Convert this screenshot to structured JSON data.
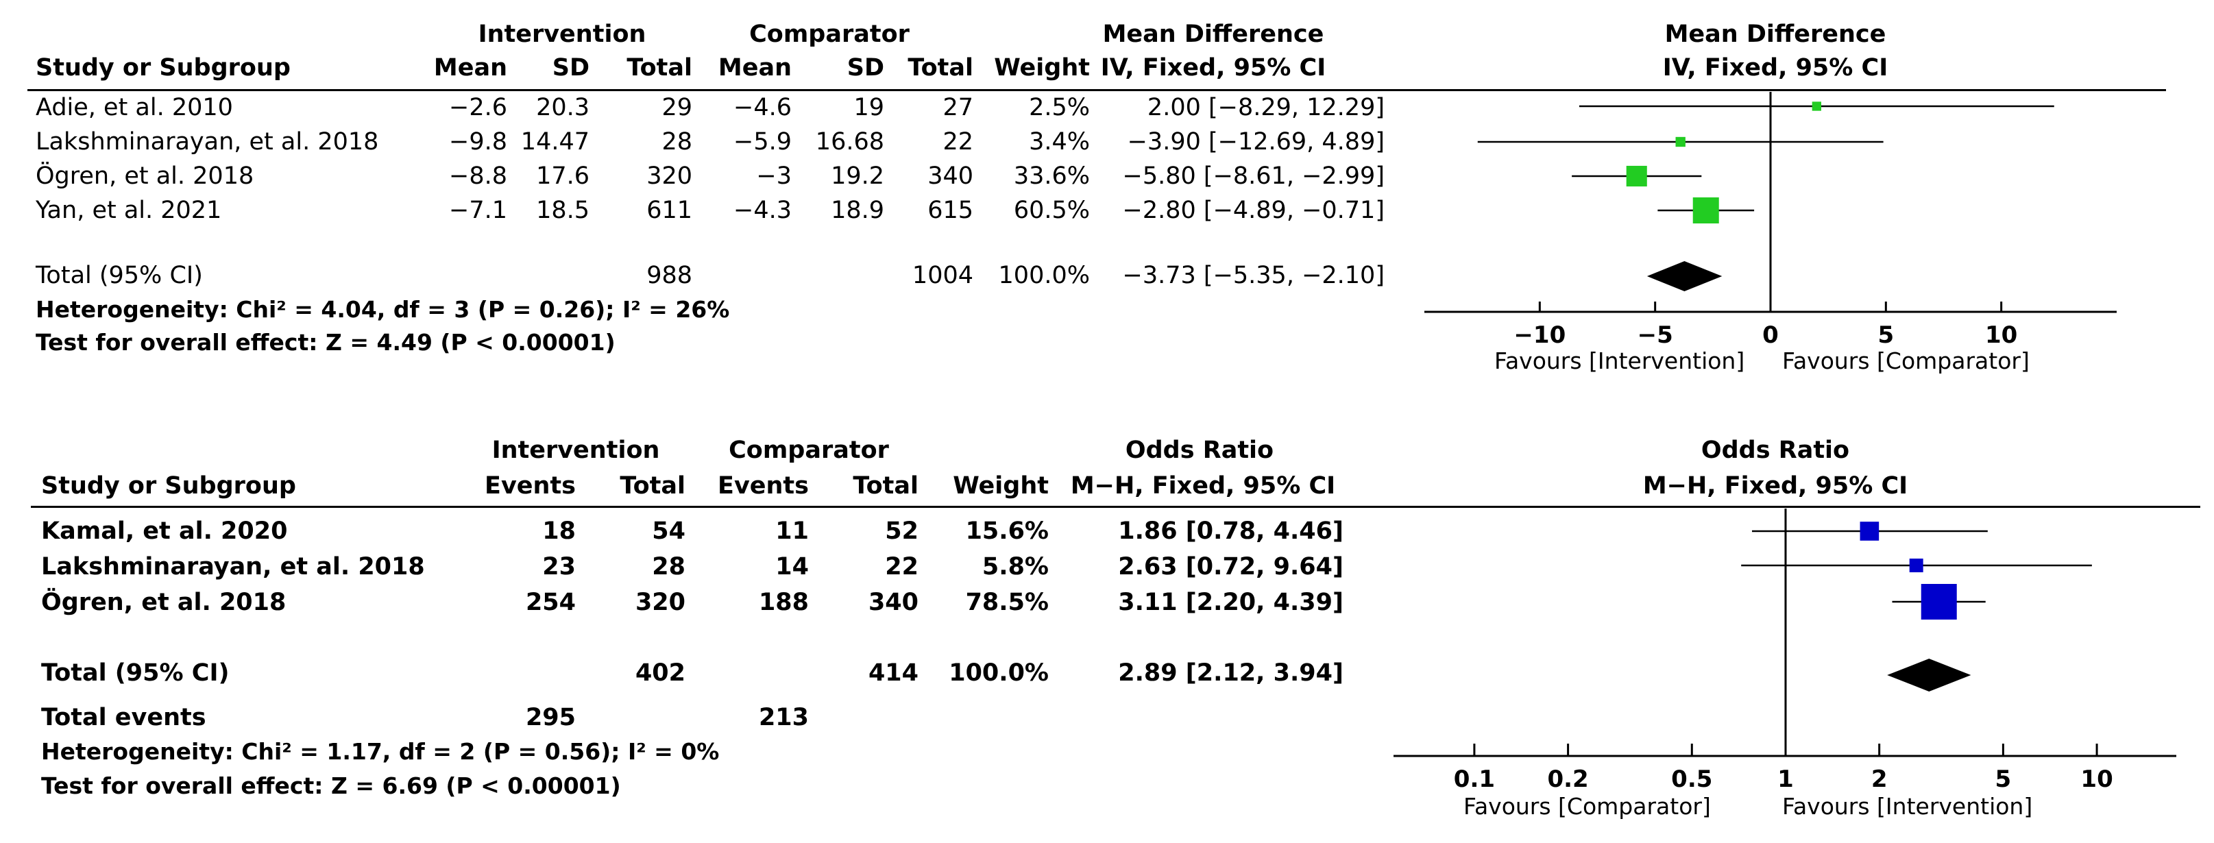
{
  "md": {
    "group_intervention": "Intervention",
    "group_comparator": "Comparator",
    "effect_title": "Mean Difference",
    "col_study": "Study or Subgroup",
    "col_mean": "Mean",
    "col_sd": "SD",
    "col_total": "Total",
    "col_weight": "Weight",
    "col_method": "IV, Fixed, 95% CI",
    "rows": [
      {
        "study": "Adie, et al. 2010",
        "i_mean": "−2.6",
        "i_sd": "20.3",
        "i_total": "29",
        "c_mean": "−4.6",
        "c_sd": "19",
        "c_total": "27",
        "weight": "2.5%",
        "ci": "2.00 [−8.29, 12.29]"
      },
      {
        "study": "Lakshminarayan, et al. 2018",
        "i_mean": "−9.8",
        "i_sd": "14.47",
        "i_total": "28",
        "c_mean": "−5.9",
        "c_sd": "16.68",
        "c_total": "22",
        "weight": "3.4%",
        "ci": "−3.90 [−12.69, 4.89]"
      },
      {
        "study": "Ögren, et al. 2018",
        "i_mean": "−8.8",
        "i_sd": "17.6",
        "i_total": "320",
        "c_mean": "−3",
        "c_sd": "19.2",
        "c_total": "340",
        "weight": "33.6%",
        "ci": "−5.80 [−8.61, −2.99]"
      },
      {
        "study": "Yan, et al. 2021",
        "i_mean": "−7.1",
        "i_sd": "18.5",
        "i_total": "611",
        "c_mean": "−4.3",
        "c_sd": "18.9",
        "c_total": "615",
        "weight": "60.5%",
        "ci": "−2.80 [−4.89, −0.71]"
      }
    ],
    "total_label": "Total (95% CI)",
    "total_i": "988",
    "total_c": "1004",
    "total_weight": "100.0%",
    "total_ci": "−3.73 [−5.35, −2.10]",
    "heterogeneity": "Heterogeneity: Chi² = 4.04, df = 3 (P = 0.26); I² = 26%",
    "overall": "Test for overall effect: Z = 4.49 (P < 0.00001)",
    "favours_left": "Favours [Intervention]",
    "favours_right": "Favours [Comparator]"
  },
  "or": {
    "group_intervention": "Intervention",
    "group_comparator": "Comparator",
    "effect_title": "Odds Ratio",
    "col_study": "Study or Subgroup",
    "col_events": "Events",
    "col_total": "Total",
    "col_weight": "Weight",
    "col_method": "M−H, Fixed, 95% CI",
    "rows": [
      {
        "study": "Kamal, et al. 2020",
        "i_events": "18",
        "i_total": "54",
        "c_events": "11",
        "c_total": "52",
        "weight": "15.6%",
        "ci": "1.86 [0.78, 4.46]"
      },
      {
        "study": "Lakshminarayan, et al. 2018",
        "i_events": "23",
        "i_total": "28",
        "c_events": "14",
        "c_total": "22",
        "weight": "5.8%",
        "ci": "2.63 [0.72, 9.64]"
      },
      {
        "study": "Ögren, et al. 2018",
        "i_events": "254",
        "i_total": "320",
        "c_events": "188",
        "c_total": "340",
        "weight": "78.5%",
        "ci": "3.11 [2.20, 4.39]"
      }
    ],
    "total_label": "Total (95% CI)",
    "total_i": "402",
    "total_c": "414",
    "total_weight": "100.0%",
    "total_ci": "2.89 [2.12, 3.94]",
    "events_label": "Total events",
    "events_i": "295",
    "events_c": "213",
    "heterogeneity": "Heterogeneity: Chi² = 1.17, df = 2 (P = 0.56); I² = 0%",
    "overall": "Test for overall effect: Z = 6.69 (P < 0.00001)",
    "favours_left": "Favours [Comparator]",
    "favours_right": "Favours [Intervention]"
  },
  "chart_data": [
    {
      "type": "forest",
      "title": "Mean Difference",
      "subtitle": "IV, Fixed, 95% CI",
      "scale": "linear",
      "xlim": [
        -15,
        15
      ],
      "ticks": [
        -10,
        -5,
        0,
        5,
        10
      ],
      "tick_labels": [
        "−10",
        "−5",
        "0",
        "5",
        "10"
      ],
      "marker_color": "#22cc22",
      "studies": [
        {
          "name": "Adie, et al. 2010",
          "est": 2.0,
          "lo": -8.29,
          "hi": 12.29,
          "weight": 2.5
        },
        {
          "name": "Lakshminarayan, et al. 2018",
          "est": -3.9,
          "lo": -12.69,
          "hi": 4.89,
          "weight": 3.4
        },
        {
          "name": "Ögren, et al. 2018",
          "est": -5.8,
          "lo": -8.61,
          "hi": -2.99,
          "weight": 33.6
        },
        {
          "name": "Yan, et al. 2021",
          "est": -2.8,
          "lo": -4.89,
          "hi": -0.71,
          "weight": 60.5
        }
      ],
      "pooled": {
        "est": -3.73,
        "lo": -5.35,
        "hi": -2.1
      }
    },
    {
      "type": "forest",
      "title": "Odds Ratio",
      "subtitle": "M−H, Fixed, 95% CI",
      "scale": "log",
      "xlim": [
        0.055,
        18
      ],
      "ticks": [
        0.1,
        0.2,
        0.5,
        1,
        2,
        5,
        10
      ],
      "tick_labels": [
        "0.1",
        "0.2",
        "0.5",
        "1",
        "2",
        "5",
        "10"
      ],
      "marker_color": "#0000cc",
      "studies": [
        {
          "name": "Kamal, et al. 2020",
          "est": 1.86,
          "lo": 0.78,
          "hi": 4.46,
          "weight": 15.6
        },
        {
          "name": "Lakshminarayan, et al. 2018",
          "est": 2.63,
          "lo": 0.72,
          "hi": 9.64,
          "weight": 5.8
        },
        {
          "name": "Ögren, et al. 2018",
          "est": 3.11,
          "lo": 2.2,
          "hi": 4.39,
          "weight": 78.5
        }
      ],
      "pooled": {
        "est": 2.89,
        "lo": 2.12,
        "hi": 3.94
      }
    }
  ]
}
